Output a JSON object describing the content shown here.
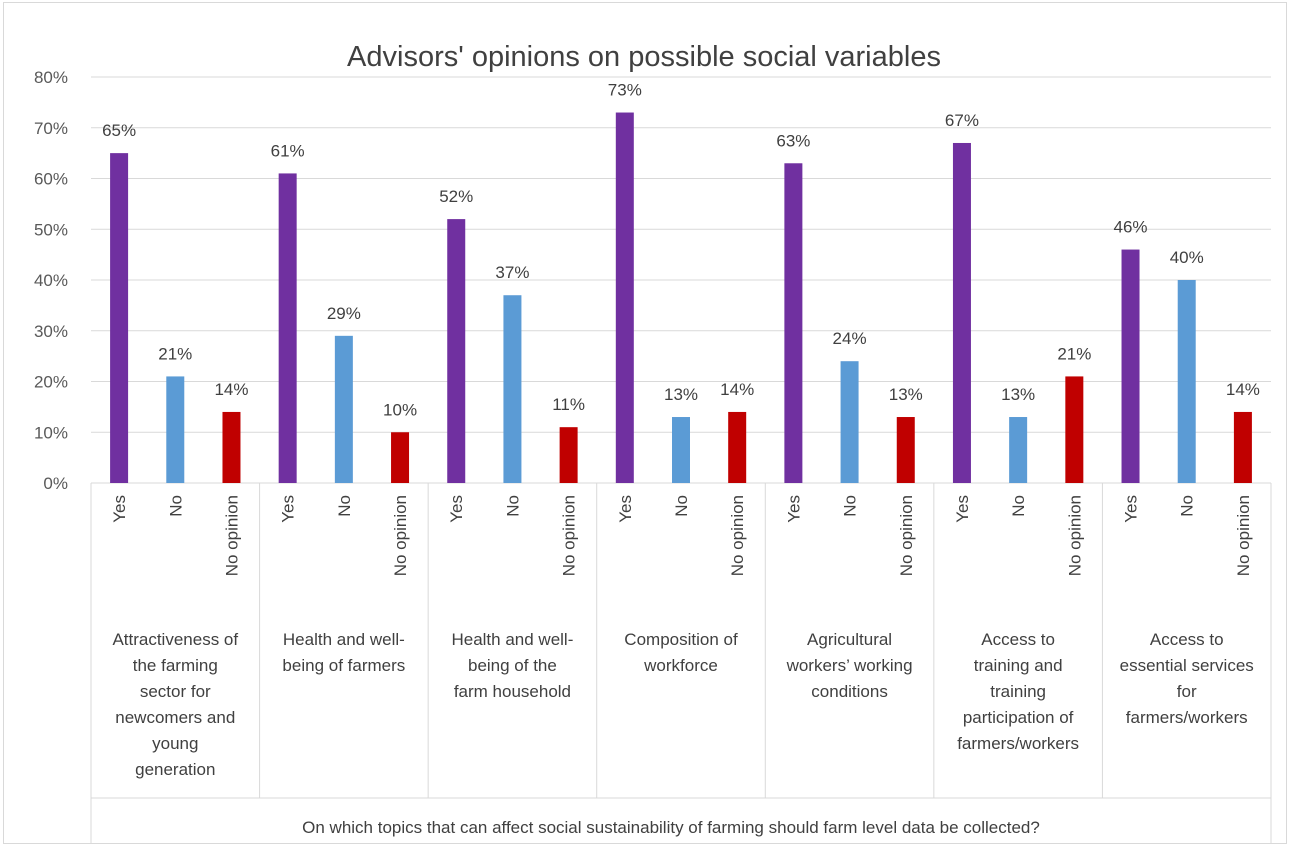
{
  "chart_data": {
    "type": "bar",
    "title": "Advisors' opinions on possible social variables",
    "xlabel": "On which topics that can affect social sustainability of farming should farm level data be collected?",
    "ylabel": "",
    "ylim": [
      0,
      80
    ],
    "yticks": [
      "0%",
      "10%",
      "20%",
      "30%",
      "40%",
      "50%",
      "60%",
      "70%",
      "80%"
    ],
    "grid": true,
    "legend": "none",
    "sub_categories": [
      "Yes",
      "No",
      "No opinion"
    ],
    "colors": {
      "Yes": "#7030a0",
      "No": "#5b9bd5",
      "No opinion": "#c00000"
    },
    "groups": [
      {
        "label_lines": [
          "Attractiveness of",
          "the farming",
          "sector for",
          "newcomers and",
          "young",
          "generation"
        ],
        "values": [
          65,
          21,
          14
        ],
        "labels": [
          "65%",
          "21%",
          "14%"
        ]
      },
      {
        "label_lines": [
          "Health and well-",
          "being of farmers"
        ],
        "values": [
          61,
          29,
          10
        ],
        "labels": [
          "61%",
          "29%",
          "10%"
        ]
      },
      {
        "label_lines": [
          "Health and well-",
          "being of the",
          "farm household"
        ],
        "values": [
          52,
          37,
          11
        ],
        "labels": [
          "52%",
          "37%",
          "11%"
        ]
      },
      {
        "label_lines": [
          "Composition of",
          "workforce"
        ],
        "values": [
          73,
          13,
          14
        ],
        "labels": [
          "73%",
          "13%",
          "14%"
        ]
      },
      {
        "label_lines": [
          "Agricultural",
          "workers’ working",
          "conditions"
        ],
        "values": [
          63,
          24,
          13
        ],
        "labels": [
          "63%",
          "24%",
          "13%"
        ]
      },
      {
        "label_lines": [
          "Access to",
          "training and",
          "training",
          "participation of",
          "farmers/workers"
        ],
        "values": [
          67,
          13,
          21
        ],
        "labels": [
          "67%",
          "13%",
          "21%"
        ]
      },
      {
        "label_lines": [
          "Access to",
          "essential services",
          "for",
          "farmers/workers"
        ],
        "values": [
          46,
          40,
          14
        ],
        "labels": [
          "46%",
          "40%",
          "14%"
        ]
      }
    ]
  }
}
